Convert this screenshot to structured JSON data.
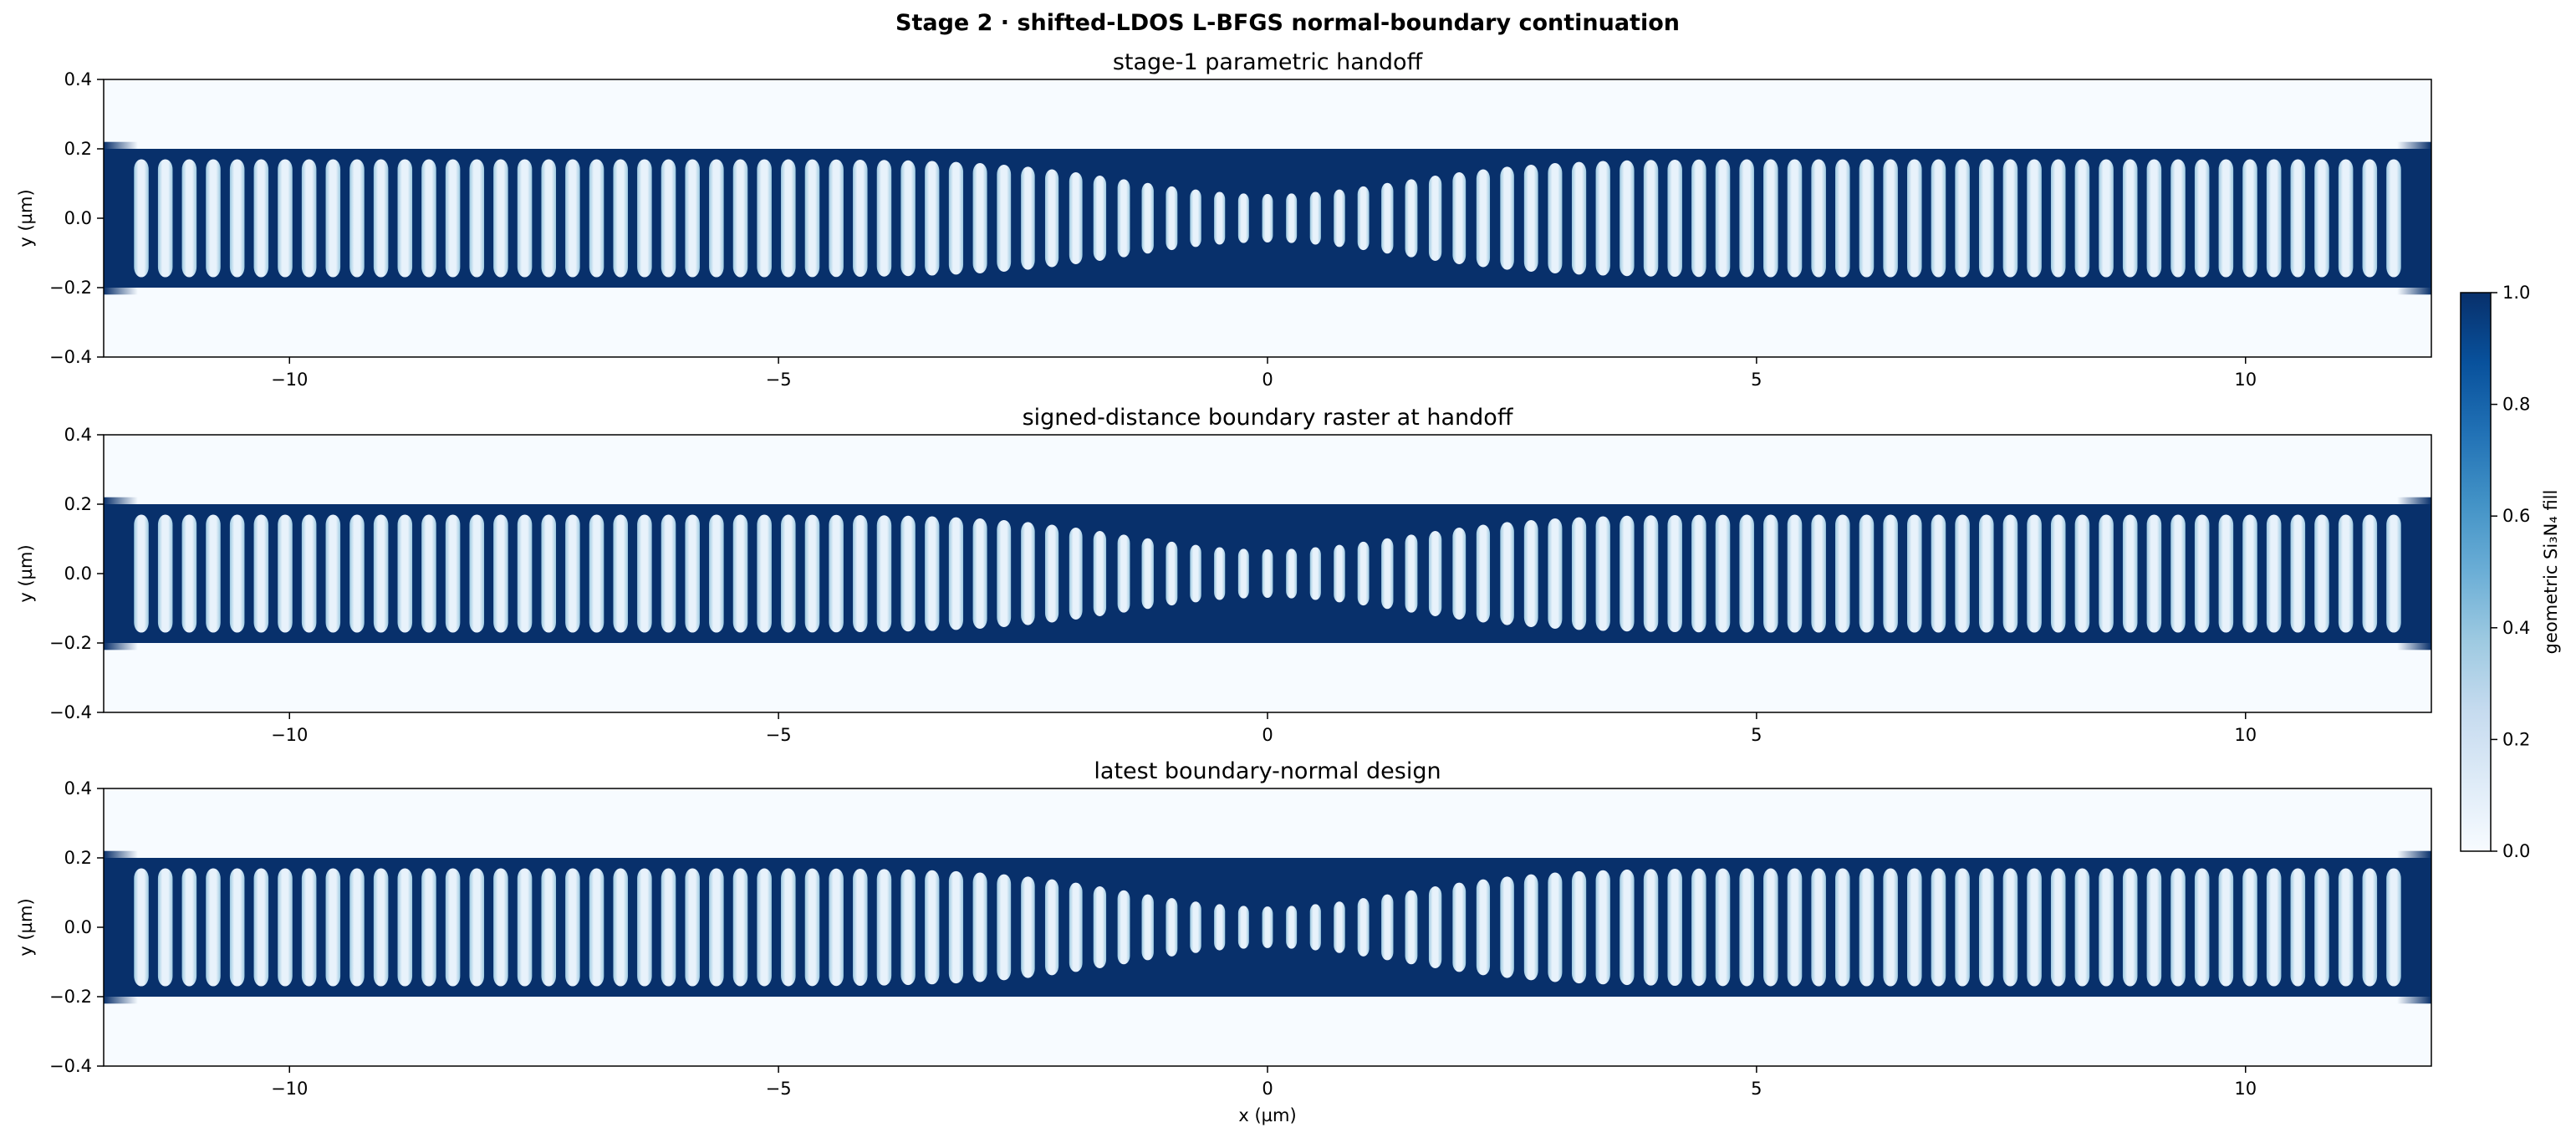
{
  "figure": {
    "suptitle": "Stage 2 · shifted-LDOS L-BFGS normal-boundary continuation"
  },
  "chart_data": [
    {
      "type": "heatmap",
      "title": "stage-1 parametric handoff",
      "xlabel": "",
      "ylabel": "y (µm)",
      "xlim": [
        -11.9,
        11.9
      ],
      "ylim": [
        -0.4,
        0.4
      ],
      "xticks": [
        -10,
        -5,
        0,
        5,
        10
      ],
      "yticks": [
        -0.4,
        -0.2,
        0.0,
        0.2,
        0.4
      ],
      "xtick_labels": [
        "−10",
        "−5",
        "0",
        "5",
        "10"
      ],
      "ytick_labels": [
        "−0.4",
        "−0.2",
        "0.0",
        "0.2",
        "0.4"
      ],
      "waveguide_half_width_um": 0.2,
      "coupler_half_width_um": 0.22,
      "hole_period_um": 0.245,
      "hole_count": 95,
      "hole_half_height_edge_um": 0.17,
      "hole_half_height_center_um": 0.07,
      "taper_sigma_um": 1.4,
      "grid": false
    },
    {
      "type": "heatmap",
      "title": "signed-distance boundary raster at handoff",
      "xlabel": "",
      "ylabel": "y (µm)",
      "xlim": [
        -11.9,
        11.9
      ],
      "ylim": [
        -0.4,
        0.4
      ],
      "xticks": [
        -10,
        -5,
        0,
        5,
        10
      ],
      "yticks": [
        -0.4,
        -0.2,
        0.0,
        0.2,
        0.4
      ],
      "xtick_labels": [
        "−10",
        "−5",
        "0",
        "5",
        "10"
      ],
      "ytick_labels": [
        "−0.4",
        "−0.2",
        "0.0",
        "0.2",
        "0.4"
      ],
      "waveguide_half_width_um": 0.2,
      "coupler_half_width_um": 0.22,
      "hole_period_um": 0.245,
      "hole_count": 95,
      "hole_half_height_edge_um": 0.17,
      "hole_half_height_center_um": 0.07,
      "taper_sigma_um": 1.4,
      "grid": false
    },
    {
      "type": "heatmap",
      "title": "latest boundary-normal design",
      "xlabel": "x (µm)",
      "ylabel": "y (µm)",
      "xlim": [
        -11.9,
        11.9
      ],
      "ylim": [
        -0.4,
        0.4
      ],
      "xticks": [
        -10,
        -5,
        0,
        5,
        10
      ],
      "yticks": [
        -0.4,
        -0.2,
        0.0,
        0.2,
        0.4
      ],
      "xtick_labels": [
        "−10",
        "−5",
        "0",
        "5",
        "10"
      ],
      "ytick_labels": [
        "−0.4",
        "−0.2",
        "0.0",
        "0.2",
        "0.4"
      ],
      "waveguide_half_width_um": 0.2,
      "coupler_half_width_um": 0.22,
      "hole_period_um": 0.245,
      "hole_count": 95,
      "hole_half_height_edge_um": 0.17,
      "hole_half_height_center_um": 0.06,
      "taper_sigma_um": 1.4,
      "grid": false
    }
  ],
  "colorbar": {
    "label": "geometric Si₃N₄ fill",
    "range": [
      0.0,
      1.0
    ],
    "ticks": [
      0.0,
      0.2,
      0.4,
      0.6,
      0.8,
      1.0
    ],
    "tick_labels": [
      "0.0",
      "0.2",
      "0.4",
      "0.6",
      "0.8",
      "1.0"
    ],
    "colormap": "Blues",
    "colors": {
      "low": "#f7fbff",
      "mid": "#6baed6",
      "high": "#08306b",
      "hole_core": "#e8f2fb",
      "hole_rim": "#9ecae1"
    }
  }
}
